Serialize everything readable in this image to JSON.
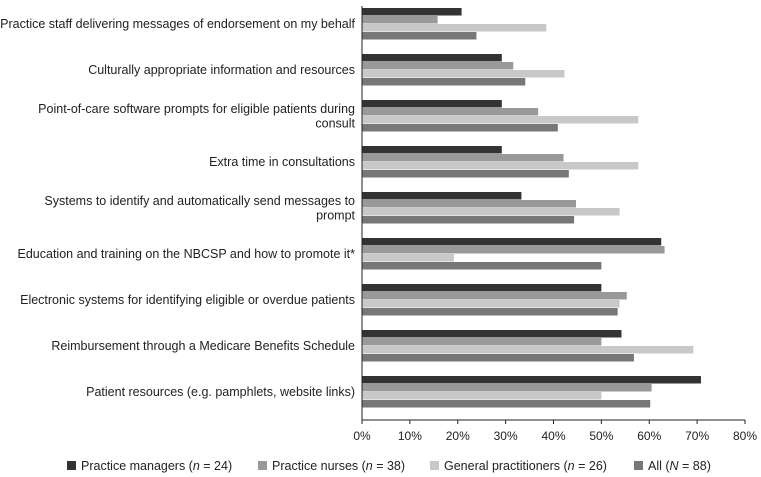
{
  "chart_data": {
    "type": "bar",
    "orientation": "horizontal",
    "title": "",
    "xlabel": "",
    "ylabel": "",
    "xlim": [
      0,
      80
    ],
    "ticks": [
      "0%",
      "10%",
      "20%",
      "30%",
      "40%",
      "50%",
      "60%",
      "70%",
      "80%"
    ],
    "grid": false,
    "legend_position": "bottom",
    "categories": [
      [
        "Practice staff delivering messages of endorsement on my behalf"
      ],
      [
        "Culturally appropriate information and resources"
      ],
      [
        "Point-of-care software prompts for eligible patients during",
        "consult"
      ],
      [
        "Extra time in consultations"
      ],
      [
        "Systems to identify and automatically send messages to",
        "prompt"
      ],
      [
        "Education and training on the NBCSP and how to promote it*"
      ],
      [
        "Electronic systems for identifying eligible or overdue patients"
      ],
      [
        "Reimbursement through a Medicare Benefits Schedule"
      ],
      [
        "Patient resources (e.g. pamphlets, website links)"
      ]
    ],
    "series": [
      {
        "name_parts": [
          "Practice managers (",
          "n",
          " = 24)"
        ],
        "color": "#333333",
        "values": [
          20.8,
          29.2,
          29.2,
          29.2,
          33.3,
          62.5,
          50.0,
          54.2,
          70.8
        ]
      },
      {
        "name_parts": [
          "Practice nurses (",
          "n",
          " = 38)"
        ],
        "color": "#999999",
        "values": [
          15.8,
          31.6,
          36.8,
          42.1,
          44.7,
          63.2,
          55.3,
          50.0,
          60.5
        ]
      },
      {
        "name_parts": [
          "General practitioners (",
          "n",
          " = 26)"
        ],
        "color": "#c8c8c8",
        "values": [
          38.5,
          42.3,
          57.7,
          57.7,
          53.8,
          19.2,
          53.8,
          69.2,
          50.0
        ]
      },
      {
        "name_parts": [
          "All (",
          "N",
          " = 88)"
        ],
        "color": "#777777",
        "values": [
          23.9,
          34.1,
          40.9,
          43.2,
          44.3,
          50.0,
          53.4,
          56.8,
          60.2
        ]
      }
    ]
  }
}
